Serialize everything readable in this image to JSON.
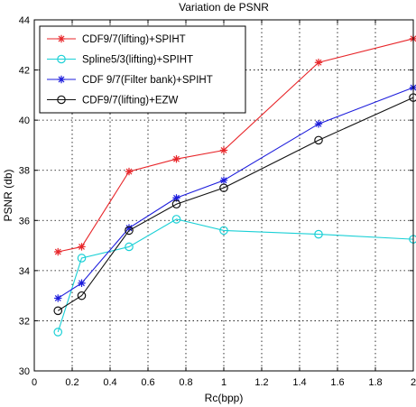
{
  "chart_data": {
    "type": "line",
    "title": "Variation de PSNR",
    "xlabel": "Rc(bpp)",
    "ylabel": "PSNR (db)",
    "xlim": [
      0,
      2
    ],
    "ylim": [
      30,
      44
    ],
    "xticks": [
      "0",
      "0.2",
      "0.4",
      "0.6",
      "0.8",
      "1",
      "1.2",
      "1.4",
      "1.6",
      "1.8",
      "2"
    ],
    "yticks": [
      "30",
      "32",
      "34",
      "36",
      "38",
      "40",
      "42",
      "44"
    ],
    "grid": true,
    "legend_position": "top-left",
    "series": [
      {
        "name": "CDF9/7(lifting)+SPIHT",
        "color": "#e8262a",
        "marker": "star",
        "x": [
          0.125,
          0.25,
          0.5,
          0.75,
          1,
          1.5,
          2
        ],
        "y": [
          34.75,
          34.95,
          37.95,
          38.45,
          38.8,
          42.3,
          43.25
        ]
      },
      {
        "name": "Spline5/3(lifting)+SPIHT",
        "color": "#1ad0d6",
        "marker": "circle",
        "x": [
          0.125,
          0.25,
          0.5,
          0.75,
          1,
          1.5,
          2
        ],
        "y": [
          31.55,
          34.5,
          34.95,
          36.05,
          35.6,
          35.45,
          35.25
        ]
      },
      {
        "name": "CDF 9/7(Filter bank)+SPIHT",
        "color": "#1c1cdc",
        "marker": "star",
        "x": [
          0.125,
          0.25,
          0.5,
          0.75,
          1,
          1.5,
          2
        ],
        "y": [
          32.9,
          33.5,
          35.7,
          36.9,
          37.6,
          39.85,
          41.3
        ]
      },
      {
        "name": "CDF9/7(lifting)+EZW",
        "color": "#111111",
        "marker": "circle",
        "x": [
          0.125,
          0.25,
          0.5,
          0.75,
          1,
          1.5,
          2
        ],
        "y": [
          32.4,
          33.0,
          35.6,
          36.65,
          37.3,
          39.2,
          40.9
        ]
      }
    ]
  }
}
